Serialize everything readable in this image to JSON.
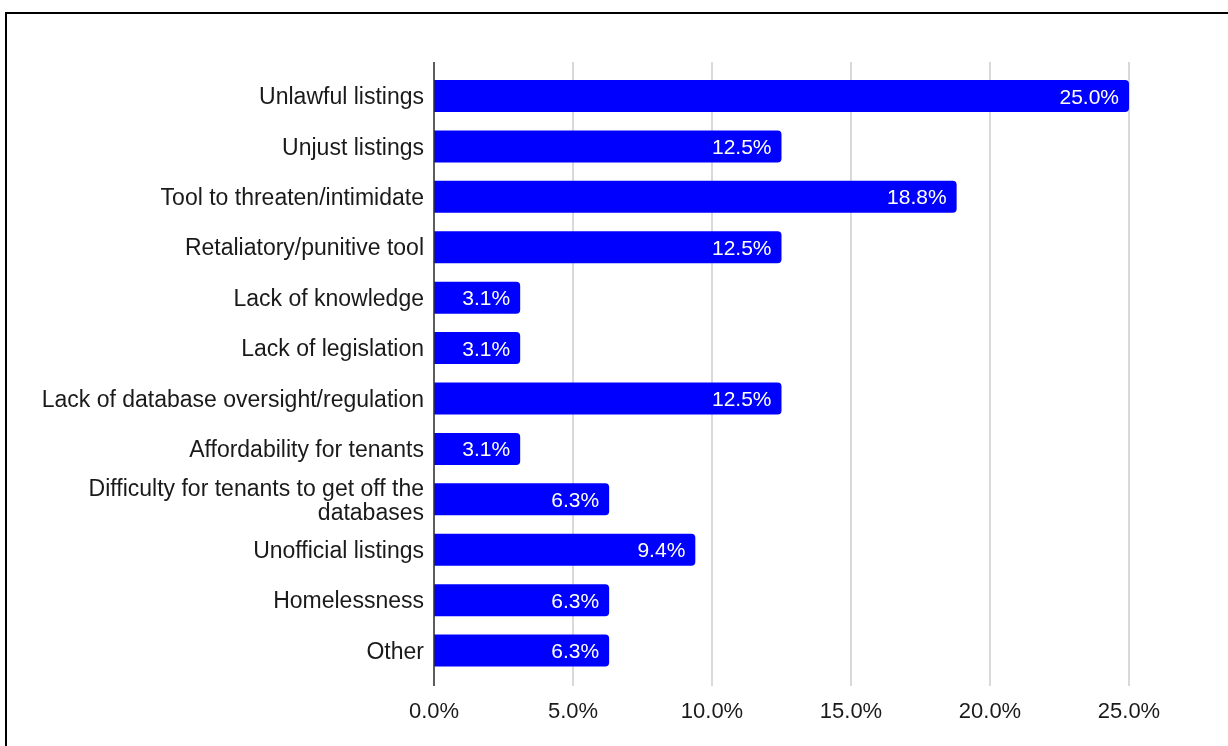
{
  "chart_data": {
    "type": "bar",
    "orientation": "horizontal",
    "categories": [
      "Unlawful listings",
      "Unjust listings",
      "Tool to threaten/intimidate",
      "Retaliatory/punitive tool",
      "Lack of knowledge",
      "Lack of legislation",
      "Lack of database oversight/regulation",
      "Affordability for tenants",
      "Difficulty for tenants to get off the databases",
      "Unofficial listings",
      "Homelessness",
      "Other"
    ],
    "values": [
      25.0,
      12.5,
      18.8,
      12.5,
      3.1,
      3.1,
      12.5,
      3.1,
      6.3,
      9.4,
      6.3,
      6.3
    ],
    "value_labels": [
      "25.0%",
      "12.5%",
      "18.8%",
      "12.5%",
      "3.1%",
      "3.1%",
      "12.5%",
      "3.1%",
      "6.3%",
      "9.4%",
      "6.3%",
      "6.3%"
    ],
    "color": "#0000ff",
    "xlim": [
      0,
      25
    ],
    "xticks": [
      {
        "value": 0,
        "label": "0.0%"
      },
      {
        "value": 5,
        "label": "5.0%"
      },
      {
        "value": 10,
        "label": "10.0%"
      },
      {
        "value": 15,
        "label": "15.0%"
      },
      {
        "value": 20,
        "label": "20.0%"
      },
      {
        "value": 25,
        "label": "25.0%"
      }
    ],
    "grid": "x"
  }
}
